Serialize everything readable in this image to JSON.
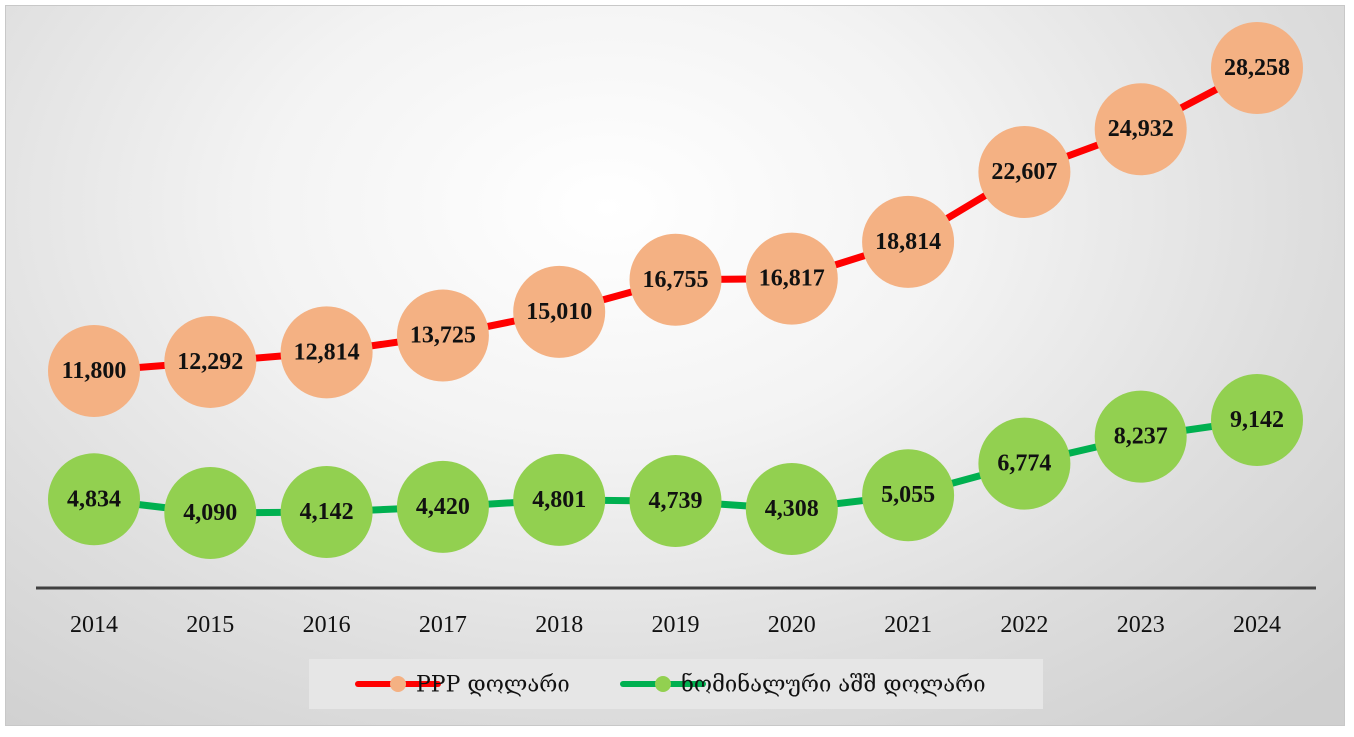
{
  "chart_data": {
    "type": "line",
    "categories": [
      "2014",
      "2015",
      "2016",
      "2017",
      "2018",
      "2019",
      "2020",
      "2021",
      "2022",
      "2023",
      "2024"
    ],
    "series": [
      {
        "name": "PPP დოლარი",
        "line_color": "#ff0000",
        "marker_color": "#f4b183",
        "values": [
          11800,
          12292,
          12814,
          13725,
          15010,
          16755,
          16817,
          18814,
          22607,
          24932,
          28258
        ],
        "labels": [
          "11,800",
          "12,292",
          "12,814",
          "13,725",
          "15,010",
          "16,755",
          "16,817",
          "18,814",
          "22,607",
          "24,932",
          "28,258"
        ]
      },
      {
        "name": "ნომინალური აშშ დოლარი",
        "line_color": "#00b050",
        "marker_color": "#92d050",
        "values": [
          4834,
          4090,
          4142,
          4420,
          4801,
          4739,
          4308,
          5055,
          6774,
          8237,
          9142
        ],
        "labels": [
          "4,834",
          "4,090",
          "4,142",
          "4,420",
          "4,801",
          "4,739",
          "4,308",
          "5,055",
          "6,774",
          "8,237",
          "9,142"
        ]
      }
    ],
    "legend_position": "bottom",
    "grid": false
  }
}
